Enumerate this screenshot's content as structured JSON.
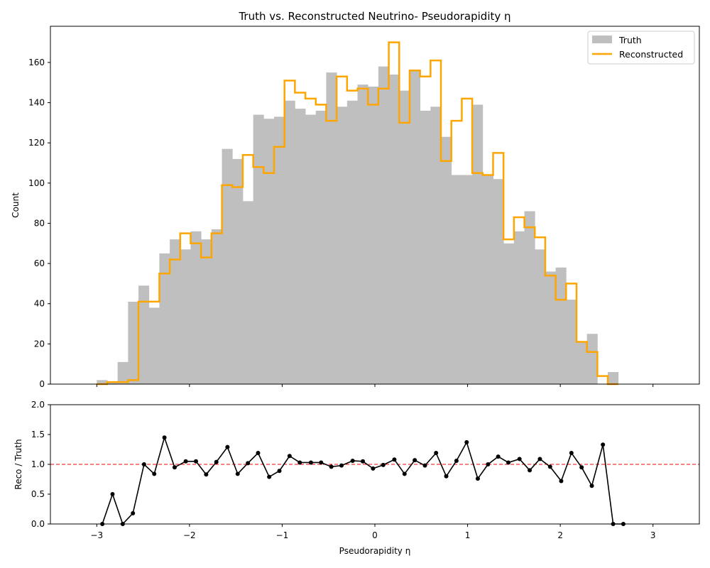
{
  "chart_data": [
    {
      "type": "bar",
      "title": "Truth vs. Reconstructed Neutrino- Pseudorapidity η",
      "xlabel": "",
      "ylabel": "Count",
      "xlim": [
        -3.5,
        3.5
      ],
      "ylim": [
        0,
        178
      ],
      "bin_edges_range": [
        -3.0,
        3.0
      ],
      "bin_width": 0.1125,
      "x_ticks": [
        -3,
        -2,
        -1,
        0,
        1,
        2,
        3
      ],
      "y_ticks": [
        0,
        20,
        40,
        60,
        80,
        100,
        120,
        140,
        160
      ],
      "legend": {
        "position": "top-right"
      },
      "series": [
        {
          "name": "Truth",
          "style": "filled-bar",
          "color": "#bfbfbf",
          "values": [
            2,
            1,
            11,
            41,
            49,
            38,
            65,
            72,
            67,
            76,
            72,
            77,
            117,
            112,
            91,
            134,
            132,
            133,
            141,
            137,
            134,
            136,
            155,
            138,
            141,
            149,
            148,
            158,
            154,
            146,
            156,
            136,
            138,
            123,
            104,
            104,
            139,
            104,
            102,
            70,
            76,
            86,
            67,
            56,
            58,
            42,
            21,
            25,
            0,
            6
          ]
        },
        {
          "name": "Reconstructed",
          "style": "step",
          "color": "#ffa500",
          "values": [
            0,
            1,
            1,
            2,
            41,
            41,
            55,
            62,
            75,
            70,
            63,
            75,
            99,
            98,
            114,
            108,
            105,
            118,
            151,
            145,
            142,
            139,
            131,
            153,
            146,
            147,
            139,
            147,
            170,
            130,
            156,
            153,
            161,
            111,
            131,
            142,
            105,
            104,
            115,
            72,
            83,
            78,
            73,
            54,
            42,
            50,
            21,
            16,
            4,
            0
          ]
        }
      ]
    },
    {
      "type": "line",
      "title": "",
      "xlabel": "Pseudorapidity η",
      "ylabel": "Reco / Truth",
      "xlim": [
        -3.5,
        3.5
      ],
      "ylim": [
        0,
        2.0
      ],
      "x_ticks": [
        -3,
        -2,
        -1,
        0,
        1,
        2,
        3
      ],
      "y_ticks": [
        0.0,
        0.5,
        1.0,
        1.5,
        2.0
      ],
      "reference_line": {
        "y": 1.0,
        "color": "#ff0000",
        "style": "dashed"
      },
      "series": [
        {
          "name": "",
          "color": "#000000",
          "x": [
            -2.94,
            -2.83,
            -2.72,
            -2.61,
            -2.49,
            -2.38,
            -2.27,
            -2.16,
            -2.04,
            -1.93,
            -1.82,
            -1.71,
            -1.59,
            -1.48,
            -1.37,
            -1.26,
            -1.14,
            -1.03,
            -0.92,
            -0.81,
            -0.69,
            -0.58,
            -0.47,
            -0.36,
            -0.24,
            -0.13,
            -0.02,
            0.09,
            0.21,
            0.32,
            0.43,
            0.54,
            0.66,
            0.77,
            0.88,
            0.99,
            1.11,
            1.22,
            1.33,
            1.44,
            1.56,
            1.67,
            1.78,
            1.89,
            2.01,
            2.12,
            2.23,
            2.34,
            2.46,
            2.57,
            2.68
          ],
          "values": [
            0.0,
            0.5,
            0.0,
            0.18,
            1.0,
            0.84,
            1.45,
            0.95,
            1.05,
            1.05,
            0.83,
            1.04,
            1.29,
            0.84,
            1.02,
            1.19,
            0.79,
            0.89,
            1.14,
            1.03,
            1.03,
            1.03,
            0.96,
            0.98,
            1.06,
            1.05,
            0.93,
            0.99,
            1.08,
            0.84,
            1.07,
            0.98,
            1.19,
            0.8,
            1.06,
            1.37,
            0.76,
            1.0,
            1.13,
            1.03,
            1.09,
            0.9,
            1.09,
            0.96,
            0.72,
            1.19,
            0.95,
            0.64,
            1.33,
            0.0,
            0.0
          ]
        }
      ]
    }
  ]
}
